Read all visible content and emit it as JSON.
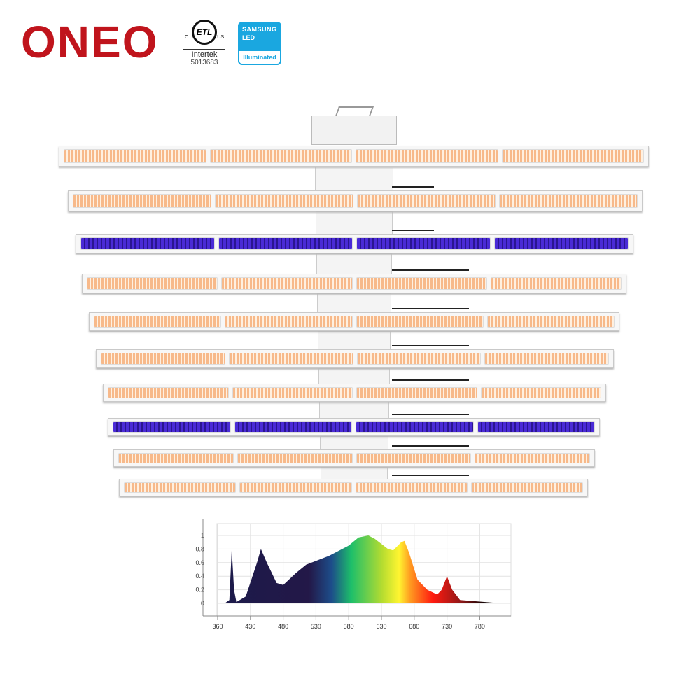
{
  "brand": {
    "logo": "ONEO",
    "cert": {
      "mark": "ETL",
      "c": "C",
      "us": "US",
      "company": "Intertek",
      "number": "5013683"
    },
    "samsung": {
      "line1": "SAMSUNG",
      "line2": "LED",
      "line3": "Illuminated"
    },
    "brand_color": "#c0141c"
  },
  "fixture": {
    "bars": [
      "warm",
      "warm",
      "uv",
      "warm",
      "warm",
      "warm",
      "warm",
      "uv",
      "warm",
      "warm"
    ],
    "panels_per_bar": 4
  },
  "chart_data": {
    "type": "area",
    "title": "",
    "xlabel": "",
    "ylabel": "",
    "x_ticks": [
      360,
      430,
      480,
      530,
      580,
      630,
      680,
      730,
      780
    ],
    "y_ticks": [
      0,
      0.2,
      0.4,
      0.6,
      0.8,
      1
    ],
    "ylim": [
      -0.15,
      1.2
    ],
    "grid": true,
    "x": [
      375,
      385,
      390,
      395,
      400,
      420,
      440,
      446,
      455,
      470,
      480,
      500,
      515,
      550,
      580,
      595,
      610,
      620,
      640,
      648,
      660,
      665,
      672,
      685,
      700,
      715,
      722,
      730,
      738,
      750,
      800,
      820
    ],
    "y": [
      0,
      0.05,
      0.8,
      0.2,
      0.02,
      0.1,
      0.6,
      0.8,
      0.6,
      0.3,
      0.27,
      0.45,
      0.57,
      0.7,
      0.85,
      0.97,
      1.0,
      0.95,
      0.8,
      0.78,
      0.9,
      0.92,
      0.75,
      0.35,
      0.2,
      0.13,
      0.2,
      0.4,
      0.2,
      0.05,
      0.01,
      0
    ]
  }
}
